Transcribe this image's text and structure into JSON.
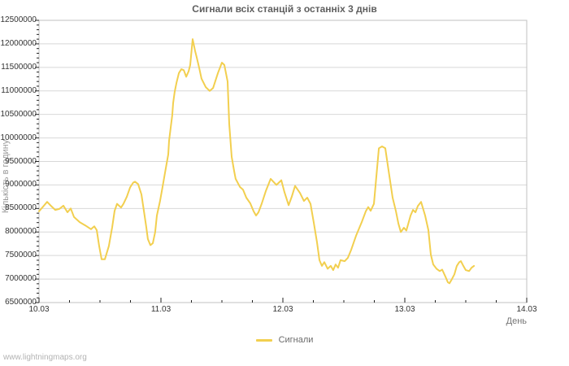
{
  "title": "Сигнали всіх станцій з останніх 3 днів",
  "watermark": "www.lightningmaps.org",
  "legend": {
    "items": [
      {
        "label": "Сигнали",
        "color": "#F2CF4F"
      }
    ]
  },
  "colors": {
    "line": "#F2CF4F",
    "grid": "#d8d8d8",
    "border": "#c0c0c0",
    "tick": "#222222",
    "tick_label": "#333333",
    "title": "#5f5f5f",
    "y_axis_title": "#9a9a9a",
    "x_axis_title": "#757575",
    "watermark": "#b3b3b3"
  },
  "x_axis": {
    "label": "День",
    "ticks": [
      {
        "label": "10.03",
        "t": 0
      },
      {
        "label": "11.03",
        "t": 1
      },
      {
        "label": "12.03",
        "t": 2
      },
      {
        "label": "13.03",
        "t": 3
      },
      {
        "label": "14.03",
        "t": 4
      }
    ],
    "range_t": [
      0,
      4
    ],
    "minor_step_t": 0.25
  },
  "y_axis": {
    "label": "Кількість в годину",
    "ticks": [
      {
        "label": "6500000",
        "value": 6500000
      },
      {
        "label": "7000000",
        "value": 7000000
      },
      {
        "label": "7500000",
        "value": 7500000
      },
      {
        "label": "8000000",
        "value": 8000000
      },
      {
        "label": "8500000",
        "value": 8500000
      },
      {
        "label": "9000000",
        "value": 9000000
      },
      {
        "label": "9500000",
        "value": 9500000
      },
      {
        "label": "10000000",
        "value": 10000000
      },
      {
        "label": "10500000",
        "value": 10500000
      },
      {
        "label": "11000000",
        "value": 11000000
      },
      {
        "label": "11500000",
        "value": 11500000
      },
      {
        "label": "12000000",
        "value": 12000000
      },
      {
        "label": "12500000",
        "value": 12500000
      }
    ],
    "range": [
      6500000,
      12500000
    ],
    "minor_step": 100000
  },
  "chart_data": {
    "type": "line",
    "title": "Сигнали всіх станцій з останніх 3 днів",
    "xlabel": "День",
    "ylabel": "Кількість в годину",
    "x_unit": "days after 10.03",
    "xlim": [
      0,
      4
    ],
    "ylim": [
      6500000,
      12500000
    ],
    "grid": "horizontal",
    "legend_position": "bottom-center",
    "series": [
      {
        "name": "Сигнали",
        "color": "#F2CF4F",
        "points": [
          [
            0.0,
            8440000
          ],
          [
            0.04,
            8560000
          ],
          [
            0.067,
            8640000
          ],
          [
            0.1,
            8550000
          ],
          [
            0.133,
            8470000
          ],
          [
            0.167,
            8490000
          ],
          [
            0.2,
            8560000
          ],
          [
            0.233,
            8420000
          ],
          [
            0.26,
            8500000
          ],
          [
            0.287,
            8320000
          ],
          [
            0.333,
            8210000
          ],
          [
            0.38,
            8140000
          ],
          [
            0.427,
            8060000
          ],
          [
            0.453,
            8120000
          ],
          [
            0.473,
            8040000
          ],
          [
            0.493,
            7700000
          ],
          [
            0.513,
            7420000
          ],
          [
            0.54,
            7420000
          ],
          [
            0.573,
            7700000
          ],
          [
            0.6,
            8100000
          ],
          [
            0.62,
            8450000
          ],
          [
            0.64,
            8600000
          ],
          [
            0.673,
            8520000
          ],
          [
            0.693,
            8600000
          ],
          [
            0.72,
            8750000
          ],
          [
            0.747,
            8950000
          ],
          [
            0.773,
            9050000
          ],
          [
            0.787,
            9070000
          ],
          [
            0.813,
            9020000
          ],
          [
            0.84,
            8800000
          ],
          [
            0.86,
            8450000
          ],
          [
            0.88,
            8100000
          ],
          [
            0.893,
            7850000
          ],
          [
            0.913,
            7720000
          ],
          [
            0.933,
            7760000
          ],
          [
            0.953,
            8000000
          ],
          [
            0.967,
            8350000
          ],
          [
            0.993,
            8660000
          ],
          [
            1.013,
            8950000
          ],
          [
            1.033,
            9250000
          ],
          [
            1.06,
            9650000
          ],
          [
            1.067,
            9940000
          ],
          [
            1.08,
            10220000
          ],
          [
            1.093,
            10480000
          ],
          [
            1.1,
            10740000
          ],
          [
            1.113,
            10980000
          ],
          [
            1.127,
            11170000
          ],
          [
            1.147,
            11380000
          ],
          [
            1.167,
            11460000
          ],
          [
            1.187,
            11440000
          ],
          [
            1.207,
            11300000
          ],
          [
            1.227,
            11420000
          ],
          [
            1.24,
            11550000
          ],
          [
            1.26,
            12100000
          ],
          [
            1.28,
            11850000
          ],
          [
            1.293,
            11720000
          ],
          [
            1.313,
            11500000
          ],
          [
            1.333,
            11260000
          ],
          [
            1.367,
            11080000
          ],
          [
            1.4,
            11000000
          ],
          [
            1.427,
            11060000
          ],
          [
            1.467,
            11380000
          ],
          [
            1.5,
            11600000
          ],
          [
            1.52,
            11550000
          ],
          [
            1.547,
            11200000
          ],
          [
            1.56,
            10300000
          ],
          [
            1.58,
            9600000
          ],
          [
            1.6,
            9300000
          ],
          [
            1.613,
            9130000
          ],
          [
            1.647,
            8960000
          ],
          [
            1.673,
            8900000
          ],
          [
            1.7,
            8730000
          ],
          [
            1.733,
            8610000
          ],
          [
            1.76,
            8440000
          ],
          [
            1.78,
            8350000
          ],
          [
            1.8,
            8420000
          ],
          [
            1.827,
            8610000
          ],
          [
            1.86,
            8870000
          ],
          [
            1.9,
            9130000
          ],
          [
            1.947,
            9000000
          ],
          [
            1.987,
            9100000
          ],
          [
            2.013,
            8850000
          ],
          [
            2.047,
            8570000
          ],
          [
            2.073,
            8750000
          ],
          [
            2.1,
            8980000
          ],
          [
            2.14,
            8830000
          ],
          [
            2.173,
            8660000
          ],
          [
            2.2,
            8730000
          ],
          [
            2.227,
            8600000
          ],
          [
            2.253,
            8200000
          ],
          [
            2.28,
            7780000
          ],
          [
            2.3,
            7400000
          ],
          [
            2.32,
            7280000
          ],
          [
            2.34,
            7360000
          ],
          [
            2.367,
            7220000
          ],
          [
            2.393,
            7280000
          ],
          [
            2.413,
            7190000
          ],
          [
            2.433,
            7310000
          ],
          [
            2.453,
            7240000
          ],
          [
            2.473,
            7400000
          ],
          [
            2.507,
            7380000
          ],
          [
            2.533,
            7450000
          ],
          [
            2.56,
            7620000
          ],
          [
            2.6,
            7920000
          ],
          [
            2.647,
            8210000
          ],
          [
            2.68,
            8440000
          ],
          [
            2.7,
            8530000
          ],
          [
            2.72,
            8450000
          ],
          [
            2.747,
            8600000
          ],
          [
            2.767,
            9200000
          ],
          [
            2.787,
            9780000
          ],
          [
            2.813,
            9820000
          ],
          [
            2.84,
            9780000
          ],
          [
            2.867,
            9300000
          ],
          [
            2.9,
            8730000
          ],
          [
            2.927,
            8440000
          ],
          [
            2.947,
            8180000
          ],
          [
            2.967,
            8000000
          ],
          [
            2.993,
            8090000
          ],
          [
            3.013,
            8030000
          ],
          [
            3.047,
            8350000
          ],
          [
            3.067,
            8470000
          ],
          [
            3.087,
            8420000
          ],
          [
            3.107,
            8550000
          ],
          [
            3.133,
            8640000
          ],
          [
            3.167,
            8350000
          ],
          [
            3.193,
            8040000
          ],
          [
            3.213,
            7520000
          ],
          [
            3.233,
            7310000
          ],
          [
            3.26,
            7220000
          ],
          [
            3.287,
            7170000
          ],
          [
            3.307,
            7200000
          ],
          [
            3.333,
            7050000
          ],
          [
            3.353,
            6930000
          ],
          [
            3.367,
            6910000
          ],
          [
            3.387,
            7000000
          ],
          [
            3.407,
            7100000
          ],
          [
            3.427,
            7280000
          ],
          [
            3.447,
            7360000
          ],
          [
            3.46,
            7380000
          ],
          [
            3.48,
            7280000
          ],
          [
            3.5,
            7190000
          ],
          [
            3.527,
            7170000
          ],
          [
            3.547,
            7240000
          ],
          [
            3.567,
            7280000
          ]
        ]
      }
    ]
  }
}
